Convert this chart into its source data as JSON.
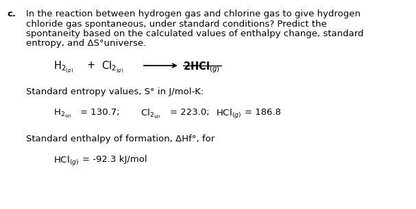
{
  "bg_color": "#ffffff",
  "label_c": "c.",
  "para_line1": "In the reaction between hydrogen gas and chlorine gas to give hydrogen",
  "para_line2": "chloride gas spontaneous, under standard conditions? Predict the",
  "para_line3": "spontaneity based on the calculated values of enthalpy change, standard",
  "para_line4": "entropy, and ΔS°universe.",
  "entropy_label": "Standard entropy values, S° in J/mol-K:",
  "enthalpy_label": "Standard enthalpy of formation, ΔHf°, for",
  "h2_val": "130.7",
  "cl2_val": "223.0",
  "hcl_val": "186.8",
  "hcl_enthalpy": "-92.3 kJ/mol",
  "font_size_body": 9.5,
  "font_size_reaction": 10.5,
  "indent_para": 0.105,
  "indent_c": 0.018
}
